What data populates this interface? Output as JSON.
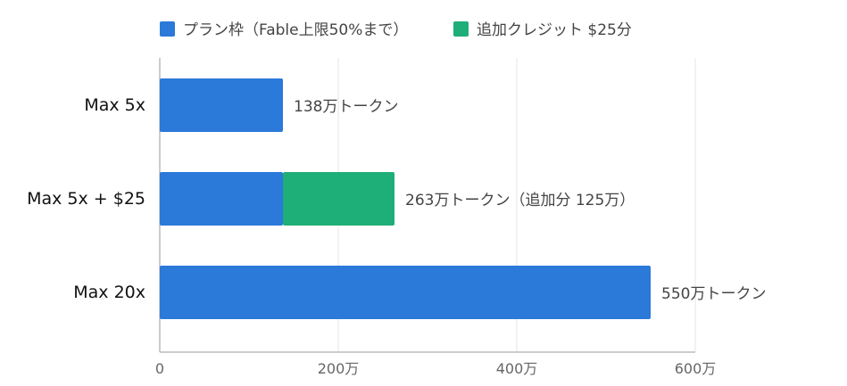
{
  "colors": {
    "plan": "#2B79D9",
    "extra": "#1EAE78",
    "grid": "#e4e4e4",
    "axis": "#bbbbbb"
  },
  "chart_data": {
    "type": "bar",
    "orientation": "horizontal",
    "stacked": true,
    "legend_position": "top",
    "grid": true,
    "xlim": [
      0,
      600
    ],
    "x_ticks": [
      {
        "value": 0,
        "label": "0"
      },
      {
        "value": 200,
        "label": "200万"
      },
      {
        "value": 400,
        "label": "400万"
      },
      {
        "value": 600,
        "label": "600万"
      }
    ],
    "categories": [
      "Max 5x",
      "Max 5x + $25",
      "Max 20x"
    ],
    "series": [
      {
        "name": "プラン枠（Fable上限50%まで）",
        "values": [
          138,
          138,
          550
        ]
      },
      {
        "name": "追加クレジット $25分",
        "values": [
          0,
          125,
          0
        ]
      }
    ],
    "data_labels": [
      "138万トークン",
      "263万トークン（追加分 125万）",
      "550万トークン"
    ]
  }
}
